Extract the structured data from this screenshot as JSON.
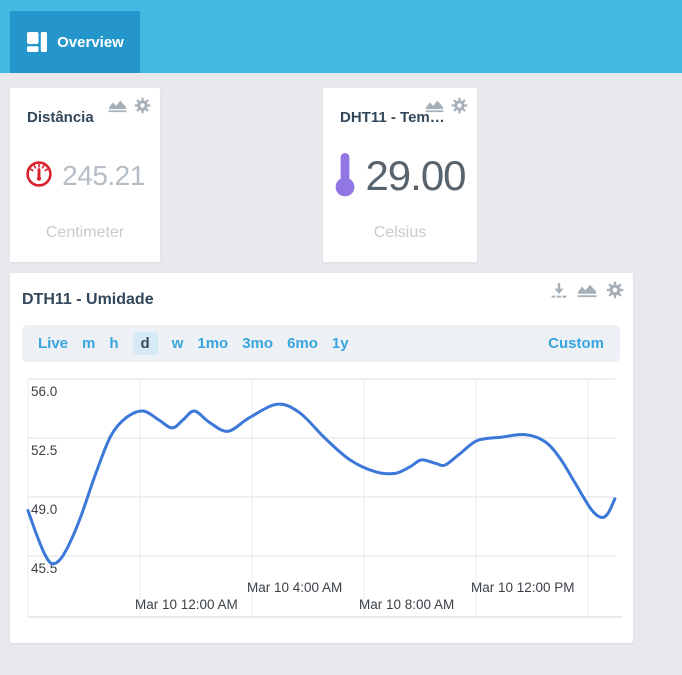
{
  "topbar": {
    "tab_label": "Overview"
  },
  "cards": [
    {
      "title": "Distância",
      "value": "245.21",
      "unit": "Centimeter",
      "icon": "gauge-icon",
      "icon_color": "#d8232f",
      "value_color": "#b6bdc4"
    },
    {
      "title": "DHT11 - Tem…",
      "value": "29.00",
      "unit": "Celsius",
      "icon": "thermometer-icon",
      "icon_color": "#9177e4",
      "value_color": "#57636d"
    }
  ],
  "chart_widget": {
    "title": "DTH11 - Umidade",
    "toolbar_icons": [
      "download-icon",
      "chart-icon",
      "gear-icon"
    ],
    "ranges": [
      "Live",
      "m",
      "h",
      "d",
      "w",
      "1mo",
      "3mo",
      "6mo",
      "1y"
    ],
    "selected_range": "d",
    "custom_label": "Custom",
    "accent_color": "#38a5de"
  },
  "chart_data": {
    "type": "line",
    "title": "DTH11 - Umidade",
    "grid": true,
    "legend": false,
    "x_axis": {
      "type": "time",
      "range_hours": [
        -4,
        17
      ],
      "gridline_hours": [
        -4,
        0,
        4,
        8,
        12,
        16
      ],
      "ticks": [
        {
          "hour": 0,
          "label": "Mar 10 12:00 AM",
          "row": "low"
        },
        {
          "hour": 4,
          "label": "Mar 10 4:00 AM",
          "row": "high"
        },
        {
          "hour": 8,
          "label": "Mar 10 8:00 AM",
          "row": "low"
        },
        {
          "hour": 12,
          "label": "Mar 10 12:00 PM",
          "row": "high"
        }
      ]
    },
    "y_axis": {
      "top_value": 56.0,
      "units_per_gridline": 3.5,
      "ticks": [
        {
          "value": 56.0,
          "label": "56.0"
        },
        {
          "value": 52.5,
          "label": "52.5"
        },
        {
          "value": 49.0,
          "label": "49.0"
        },
        {
          "value": 45.5,
          "label": "45.5"
        }
      ]
    },
    "series": [
      {
        "name": "Umidade",
        "color": "#3b78d8",
        "points": [
          [
            -4.0,
            48.2
          ],
          [
            -3.7,
            46.8
          ],
          [
            -3.4,
            45.6
          ],
          [
            -3.15,
            45.05
          ],
          [
            -2.85,
            45.3
          ],
          [
            -2.5,
            46.3
          ],
          [
            -2.1,
            47.9
          ],
          [
            -1.6,
            50.3
          ],
          [
            -1.05,
            52.6
          ],
          [
            -0.5,
            53.7
          ],
          [
            0.1,
            54.1
          ],
          [
            0.65,
            53.6
          ],
          [
            1.15,
            53.1
          ],
          [
            1.55,
            53.6
          ],
          [
            1.95,
            54.1
          ],
          [
            2.5,
            53.4
          ],
          [
            3.15,
            52.9
          ],
          [
            3.9,
            53.7
          ],
          [
            4.9,
            54.5
          ],
          [
            5.7,
            54.0
          ],
          [
            6.6,
            52.5
          ],
          [
            7.5,
            51.2
          ],
          [
            8.4,
            50.5
          ],
          [
            9.1,
            50.4
          ],
          [
            9.65,
            50.8
          ],
          [
            10.05,
            51.2
          ],
          [
            10.55,
            51.0
          ],
          [
            10.9,
            50.9
          ],
          [
            11.45,
            51.6
          ],
          [
            12.05,
            52.35
          ],
          [
            12.9,
            52.55
          ],
          [
            13.75,
            52.7
          ],
          [
            14.45,
            52.3
          ],
          [
            15.0,
            51.3
          ],
          [
            15.55,
            49.8
          ],
          [
            16.1,
            48.3
          ],
          [
            16.45,
            47.8
          ],
          [
            16.7,
            48.0
          ],
          [
            16.96,
            48.9
          ]
        ]
      }
    ]
  }
}
